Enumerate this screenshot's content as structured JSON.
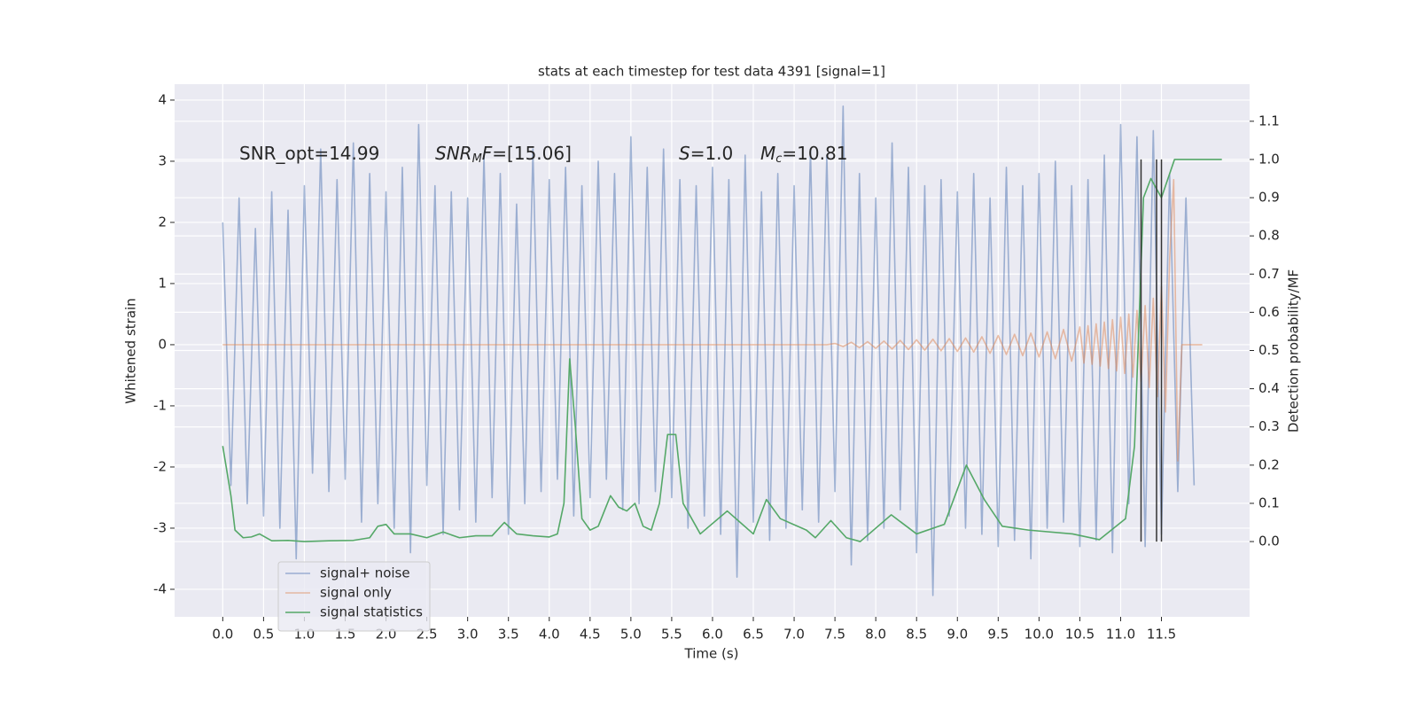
{
  "chart_data": {
    "type": "line",
    "title": "stats at each timestep for test data 4391 [signal=1]",
    "xlabel": "Time (s)",
    "ylabel": "Whitened strain",
    "y2label": "Detection probability/MF",
    "xlim": [
      -0.59,
      12.58
    ],
    "ylim": [
      -4.45,
      4.26
    ],
    "y2lim": [
      -0.197,
      1.197
    ],
    "grid": true,
    "legend": "lower left",
    "xticks": [
      {
        "value": 0,
        "label": "0.0"
      },
      {
        "value": 0.5,
        "label": "0.5"
      },
      {
        "value": 1,
        "label": "1.0"
      },
      {
        "value": 1.5,
        "label": "1.5"
      },
      {
        "value": 2,
        "label": "2.0"
      },
      {
        "value": 2.5,
        "label": "2.5"
      },
      {
        "value": 3,
        "label": "3.0"
      },
      {
        "value": 3.5,
        "label": "3.5"
      },
      {
        "value": 4,
        "label": "4.0"
      },
      {
        "value": 4.5,
        "label": "4.5"
      },
      {
        "value": 5,
        "label": "5.0"
      },
      {
        "value": 5.5,
        "label": "5.5"
      },
      {
        "value": 6,
        "label": "6.0"
      },
      {
        "value": 6.5,
        "label": "6.5"
      },
      {
        "value": 7,
        "label": "7.0"
      },
      {
        "value": 7.5,
        "label": "7.5"
      },
      {
        "value": 8,
        "label": "8.0"
      },
      {
        "value": 8.5,
        "label": "8.5"
      },
      {
        "value": 9,
        "label": "9.0"
      },
      {
        "value": 9.5,
        "label": "9.5"
      },
      {
        "value": 10,
        "label": "10.0"
      },
      {
        "value": 10.5,
        "label": "10.5"
      },
      {
        "value": 11,
        "label": "11.0"
      },
      {
        "value": 11.5,
        "label": "11.5"
      }
    ],
    "yticks": [
      -4,
      -3,
      -2,
      -1,
      0,
      1,
      2,
      3,
      4
    ],
    "y2ticks": [
      {
        "value": 0,
        "label": "0.0"
      },
      {
        "value": 0.1,
        "label": "0.1"
      },
      {
        "value": 0.2,
        "label": "0.2"
      },
      {
        "value": 0.3,
        "label": "0.3"
      },
      {
        "value": 0.4,
        "label": "0.4"
      },
      {
        "value": 0.5,
        "label": "0.5"
      },
      {
        "value": 0.6,
        "label": "0.6"
      },
      {
        "value": 0.7,
        "label": "0.7"
      },
      {
        "value": 0.8,
        "label": "0.8"
      },
      {
        "value": 0.9,
        "label": "0.9"
      },
      {
        "value": 1,
        "label": "1.0"
      },
      {
        "value": 1.1,
        "label": "1.1"
      }
    ],
    "series": [
      {
        "name": "signal+ noise",
        "color": "#4c72b0",
        "opacity": 0.5,
        "x": [
          0,
          0.1,
          0.2,
          0.3,
          0.4,
          0.5,
          0.6,
          0.7,
          0.8,
          0.9,
          1,
          1.1,
          1.2,
          1.3,
          1.4,
          1.5,
          1.6,
          1.7,
          1.8,
          1.9,
          2,
          2.1,
          2.2,
          2.3,
          2.4,
          2.5,
          2.6,
          2.7,
          2.8,
          2.9,
          3,
          3.1,
          3.2,
          3.3,
          3.4,
          3.5,
          3.6,
          3.7,
          3.8,
          3.9,
          4,
          4.1,
          4.2,
          4.3,
          4.4,
          4.5,
          4.6,
          4.7,
          4.8,
          4.9,
          5,
          5.1,
          5.2,
          5.3,
          5.4,
          5.5,
          5.6,
          5.7,
          5.8,
          5.9,
          6,
          6.1,
          6.2,
          6.3,
          6.4,
          6.5,
          6.6,
          6.7,
          6.8,
          6.9,
          7,
          7.1,
          7.2,
          7.3,
          7.4,
          7.5,
          7.6,
          7.7,
          7.8,
          7.9,
          8,
          8.1,
          8.2,
          8.3,
          8.4,
          8.5,
          8.6,
          8.7,
          8.8,
          8.9,
          9,
          9.1,
          9.2,
          9.3,
          9.4,
          9.5,
          9.6,
          9.7,
          9.8,
          9.9,
          10,
          10.1,
          10.2,
          10.3,
          10.4,
          10.5,
          10.6,
          10.7,
          10.8,
          10.9,
          11,
          11.1,
          11.2,
          11.3,
          11.4,
          11.5,
          11.6,
          11.7,
          11.8,
          11.9
        ],
        "values": [
          2.0,
          -2.3,
          2.4,
          -2.6,
          1.9,
          -2.8,
          2.5,
          -3.0,
          2.2,
          -3.5,
          2.6,
          -2.1,
          3.2,
          -2.4,
          2.7,
          -2.2,
          3.3,
          -2.9,
          2.8,
          -2.6,
          2.5,
          -3.0,
          2.9,
          -3.4,
          3.6,
          -2.3,
          2.6,
          -3.1,
          2.5,
          -2.7,
          2.4,
          -2.9,
          3.1,
          -2.5,
          2.8,
          -3.1,
          2.3,
          -2.6,
          3.2,
          -2.4,
          2.7,
          -2.2,
          2.9,
          -2.8,
          2.6,
          -2.5,
          3.0,
          -2.2,
          2.8,
          -2.7,
          3.4,
          -2.6,
          2.9,
          -2.4,
          3.2,
          -2.5,
          2.7,
          -3.0,
          2.6,
          -2.8,
          2.9,
          -3.1,
          2.7,
          -3.8,
          3.1,
          -2.9,
          2.5,
          -3.2,
          2.8,
          -3.0,
          2.6,
          -2.7,
          3.2,
          -2.9,
          3.1,
          -2.4,
          3.9,
          -3.6,
          2.8,
          -3.2,
          2.4,
          -3.0,
          3.3,
          -2.7,
          2.9,
          -3.4,
          2.6,
          -4.1,
          2.7,
          -2.8,
          2.5,
          -3.0,
          2.8,
          -3.1,
          2.4,
          -3.3,
          2.9,
          -3.2,
          2.6,
          -3.5,
          2.8,
          -3.0,
          3.0,
          -2.9,
          2.6,
          -3.3,
          2.7,
          -3.2,
          3.1,
          -3.4,
          3.6,
          -2.6,
          3.4,
          -3.3,
          3.5,
          -3.1,
          2.8,
          -2.4,
          2.4,
          -2.3
        ]
      },
      {
        "name": "signal only",
        "color": "#dd8452",
        "opacity": 0.5,
        "x": [
          0,
          7.4,
          7.5,
          7.6,
          7.7,
          7.8,
          7.9,
          8,
          8.1,
          8.2,
          8.3,
          8.4,
          8.5,
          8.6,
          8.7,
          8.8,
          8.9,
          9,
          9.1,
          9.2,
          9.3,
          9.4,
          9.5,
          9.6,
          9.7,
          9.8,
          9.9,
          10,
          10.1,
          10.2,
          10.3,
          10.4,
          10.5,
          10.55,
          10.6,
          10.65,
          10.7,
          10.75,
          10.8,
          10.85,
          10.9,
          10.95,
          11,
          11.05,
          11.1,
          11.15,
          11.2,
          11.25,
          11.3,
          11.35,
          11.4,
          11.45,
          11.5,
          11.55,
          11.6,
          11.65,
          11.7,
          11.75,
          12
        ],
        "values": [
          0,
          0,
          0.02,
          -0.03,
          0.04,
          -0.05,
          0.05,
          -0.06,
          0.06,
          -0.07,
          0.07,
          -0.08,
          0.08,
          -0.09,
          0.09,
          -0.1,
          0.1,
          -0.11,
          0.11,
          -0.12,
          0.13,
          -0.14,
          0.15,
          -0.16,
          0.17,
          -0.18,
          0.19,
          -0.2,
          0.21,
          -0.23,
          0.25,
          -0.27,
          0.29,
          -0.3,
          0.31,
          -0.32,
          0.34,
          -0.35,
          0.37,
          -0.39,
          0.41,
          -0.43,
          0.45,
          -0.47,
          0.5,
          -0.53,
          0.56,
          -0.6,
          0.64,
          -0.7,
          0.76,
          -0.85,
          0.95,
          -1.1,
          1.4,
          2.7,
          -1.9,
          0,
          0
        ]
      },
      {
        "name": "signal statistics",
        "color": "#55a868",
        "axis": "y2",
        "x": [
          0,
          0.1,
          0.15,
          0.25,
          0.35,
          0.45,
          0.6,
          0.8,
          1,
          1.3,
          1.6,
          1.8,
          1.9,
          2,
          2.1,
          2.3,
          2.5,
          2.7,
          2.9,
          3.1,
          3.3,
          3.45,
          3.6,
          3.8,
          4,
          4.1,
          4.18,
          4.25,
          4.32,
          4.4,
          4.5,
          4.6,
          4.75,
          4.85,
          4.95,
          5.05,
          5.15,
          5.25,
          5.35,
          5.45,
          5.55,
          5.64,
          5.85,
          6.18,
          6.34,
          6.5,
          6.66,
          6.83,
          7.15,
          7.26,
          7.45,
          7.64,
          7.81,
          8.19,
          8.5,
          8.84,
          9.11,
          9.33,
          9.55,
          9.87,
          10.41,
          10.74,
          11.06,
          11.17,
          11.28,
          11.37,
          11.5,
          11.66,
          12.24
        ],
        "values": [
          0.25,
          0.12,
          0.03,
          0.01,
          0.012,
          0.02,
          0.002,
          0.003,
          0,
          0.002,
          0.003,
          0.01,
          0.04,
          0.045,
          0.02,
          0.02,
          0.01,
          0.025,
          0.01,
          0.015,
          0.015,
          0.05,
          0.02,
          0.015,
          0.012,
          0.02,
          0.1,
          0.478,
          0.3,
          0.06,
          0.03,
          0.04,
          0.12,
          0.09,
          0.08,
          0.1,
          0.04,
          0.03,
          0.1,
          0.28,
          0.28,
          0.1,
          0.02,
          0.08,
          0.05,
          0.02,
          0.11,
          0.06,
          0.03,
          0.01,
          0.055,
          0.01,
          0,
          0.07,
          0.02,
          0.045,
          0.2,
          0.11,
          0.04,
          0.03,
          0.02,
          0.005,
          0.06,
          0.25,
          0.9,
          0.95,
          0.9,
          1,
          1
        ]
      }
    ],
    "vlines": {
      "color": "#333333",
      "x": [
        11.25,
        11.44,
        11.5
      ],
      "y2": [
        0,
        1
      ]
    },
    "annotations": [
      [
        {
          "text": "SNR_opt=14.99",
          "style": "normal"
        }
      ],
      [
        {
          "text": "SNR",
          "style": "italic"
        },
        {
          "text": "M",
          "style": "sub"
        },
        {
          "text": "F",
          "style": "italic"
        },
        {
          "text": "=[15.06]",
          "style": "normal"
        }
      ],
      [
        {
          "text": "S",
          "style": "italic"
        },
        {
          "text": "=1.0",
          "style": "normal"
        }
      ],
      [
        {
          "text": "M",
          "style": "italic"
        },
        {
          "text": "c",
          "style": "sub"
        },
        {
          "text": "=10.81",
          "style": "normal"
        }
      ]
    ]
  }
}
